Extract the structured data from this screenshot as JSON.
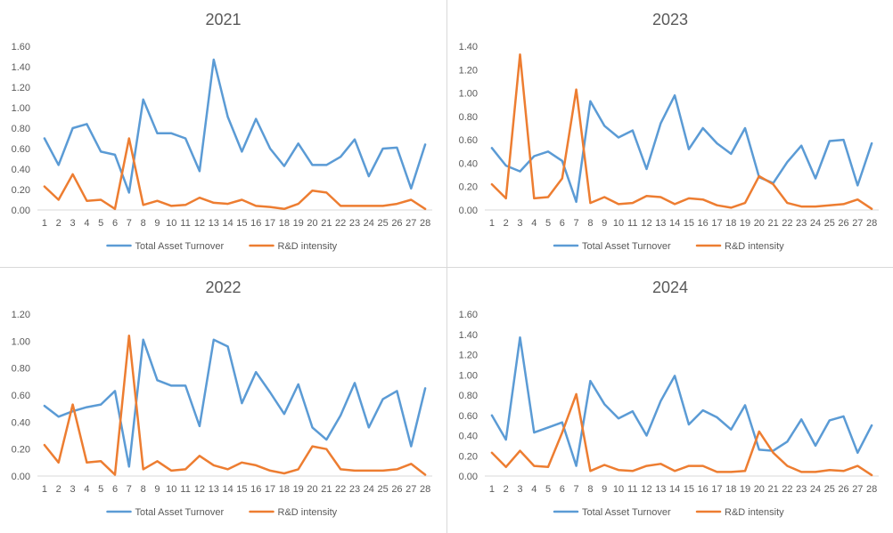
{
  "chart_data": [
    {
      "type": "line",
      "title": "2021",
      "ylim": [
        0,
        1.6
      ],
      "yticks": [
        "0.00",
        "0.20",
        "0.40",
        "0.60",
        "0.80",
        "1.00",
        "1.20",
        "1.40",
        "1.60"
      ],
      "categories": [
        "1",
        "2",
        "3",
        "4",
        "5",
        "6",
        "7",
        "8",
        "9",
        "10",
        "11",
        "12",
        "13",
        "14",
        "15",
        "16",
        "17",
        "18",
        "19",
        "20",
        "21",
        "22",
        "23",
        "24",
        "25",
        "26",
        "27",
        "28"
      ],
      "series": [
        {
          "name": "Total Asset Turnover",
          "color": "#5b9bd5",
          "values": [
            0.7,
            0.44,
            0.8,
            0.84,
            0.57,
            0.54,
            0.17,
            1.08,
            0.75,
            0.75,
            0.7,
            0.38,
            1.47,
            0.91,
            0.57,
            0.89,
            0.6,
            0.43,
            0.65,
            0.44,
            0.44,
            0.52,
            0.69,
            0.33,
            0.6,
            0.61,
            0.21,
            0.64
          ]
        },
        {
          "name": "R&D intensity",
          "color": "#ed7d31",
          "values": [
            0.23,
            0.1,
            0.35,
            0.09,
            0.1,
            0.01,
            0.7,
            0.05,
            0.09,
            0.04,
            0.05,
            0.12,
            0.07,
            0.06,
            0.1,
            0.04,
            0.03,
            0.01,
            0.06,
            0.19,
            0.17,
            0.04,
            0.04,
            0.04,
            0.04,
            0.06,
            0.1,
            0.01
          ]
        }
      ]
    },
    {
      "type": "line",
      "title": "2023",
      "ylim": [
        0,
        1.4
      ],
      "yticks": [
        "0.00",
        "0.20",
        "0.40",
        "0.60",
        "0.80",
        "1.00",
        "1.20",
        "1.40"
      ],
      "categories": [
        "1",
        "2",
        "3",
        "4",
        "5",
        "6",
        "7",
        "8",
        "9",
        "10",
        "11",
        "12",
        "13",
        "14",
        "15",
        "16",
        "17",
        "18",
        "19",
        "20",
        "21",
        "22",
        "23",
        "24",
        "25",
        "26",
        "27",
        "28"
      ],
      "series": [
        {
          "name": "Total Asset Turnover",
          "color": "#5b9bd5",
          "values": [
            0.53,
            0.38,
            0.33,
            0.46,
            0.5,
            0.42,
            0.07,
            0.93,
            0.72,
            0.62,
            0.68,
            0.35,
            0.74,
            0.98,
            0.52,
            0.7,
            0.57,
            0.48,
            0.7,
            0.28,
            0.23,
            0.41,
            0.55,
            0.27,
            0.59,
            0.6,
            0.21,
            0.57
          ]
        },
        {
          "name": "R&D intensity",
          "color": "#ed7d31",
          "values": [
            0.22,
            0.1,
            1.33,
            0.1,
            0.11,
            0.27,
            1.03,
            0.06,
            0.11,
            0.05,
            0.06,
            0.12,
            0.11,
            0.05,
            0.1,
            0.09,
            0.04,
            0.02,
            0.06,
            0.29,
            0.22,
            0.06,
            0.03,
            0.03,
            0.04,
            0.05,
            0.09,
            0.01
          ]
        }
      ]
    },
    {
      "type": "line",
      "title": "2022",
      "ylim": [
        0,
        1.2
      ],
      "yticks": [
        "0.00",
        "0.20",
        "0.40",
        "0.60",
        "0.80",
        "1.00",
        "1.20"
      ],
      "categories": [
        "1",
        "2",
        "3",
        "4",
        "5",
        "6",
        "7",
        "8",
        "9",
        "10",
        "11",
        "12",
        "13",
        "14",
        "15",
        "16",
        "17",
        "18",
        "19",
        "20",
        "21",
        "22",
        "23",
        "24",
        "25",
        "26",
        "27",
        "28"
      ],
      "series": [
        {
          "name": "Total Asset Turnover",
          "color": "#5b9bd5",
          "values": [
            0.52,
            0.44,
            0.48,
            0.51,
            0.53,
            0.63,
            0.07,
            1.01,
            0.71,
            0.67,
            0.67,
            0.37,
            1.01,
            0.96,
            0.54,
            0.77,
            0.62,
            0.46,
            0.68,
            0.36,
            0.27,
            0.45,
            0.69,
            0.36,
            0.57,
            0.63,
            0.22,
            0.65
          ]
        },
        {
          "name": "R&D intensity",
          "color": "#ed7d31",
          "values": [
            0.23,
            0.1,
            0.53,
            0.1,
            0.11,
            0.01,
            1.04,
            0.05,
            0.11,
            0.04,
            0.05,
            0.15,
            0.08,
            0.05,
            0.1,
            0.08,
            0.04,
            0.02,
            0.05,
            0.22,
            0.2,
            0.05,
            0.04,
            0.04,
            0.04,
            0.05,
            0.09,
            0.01
          ]
        }
      ]
    },
    {
      "type": "line",
      "title": "2024",
      "ylim": [
        0,
        1.6
      ],
      "yticks": [
        "0.00",
        "0.20",
        "0.40",
        "0.60",
        "0.80",
        "1.00",
        "1.20",
        "1.40",
        "1.60"
      ],
      "categories": [
        "1",
        "2",
        "3",
        "4",
        "5",
        "6",
        "7",
        "8",
        "9",
        "10",
        "11",
        "12",
        "13",
        "14",
        "15",
        "16",
        "17",
        "18",
        "19",
        "20",
        "21",
        "22",
        "23",
        "24",
        "25",
        "26",
        "27",
        "28"
      ],
      "series": [
        {
          "name": "Total Asset Turnover",
          "color": "#5b9bd5",
          "values": [
            0.6,
            0.36,
            1.37,
            0.43,
            0.48,
            0.53,
            0.1,
            0.94,
            0.71,
            0.57,
            0.64,
            0.4,
            0.74,
            0.99,
            0.51,
            0.65,
            0.58,
            0.46,
            0.7,
            0.26,
            0.25,
            0.34,
            0.56,
            0.3,
            0.55,
            0.59,
            0.23,
            0.5
          ]
        },
        {
          "name": "R&D intensity",
          "color": "#ed7d31",
          "values": [
            0.23,
            0.09,
            0.25,
            0.1,
            0.09,
            0.43,
            0.81,
            0.05,
            0.11,
            0.06,
            0.05,
            0.1,
            0.12,
            0.05,
            0.1,
            0.1,
            0.04,
            0.04,
            0.05,
            0.44,
            0.23,
            0.1,
            0.04,
            0.04,
            0.06,
            0.05,
            0.1,
            0.01
          ]
        }
      ]
    }
  ]
}
